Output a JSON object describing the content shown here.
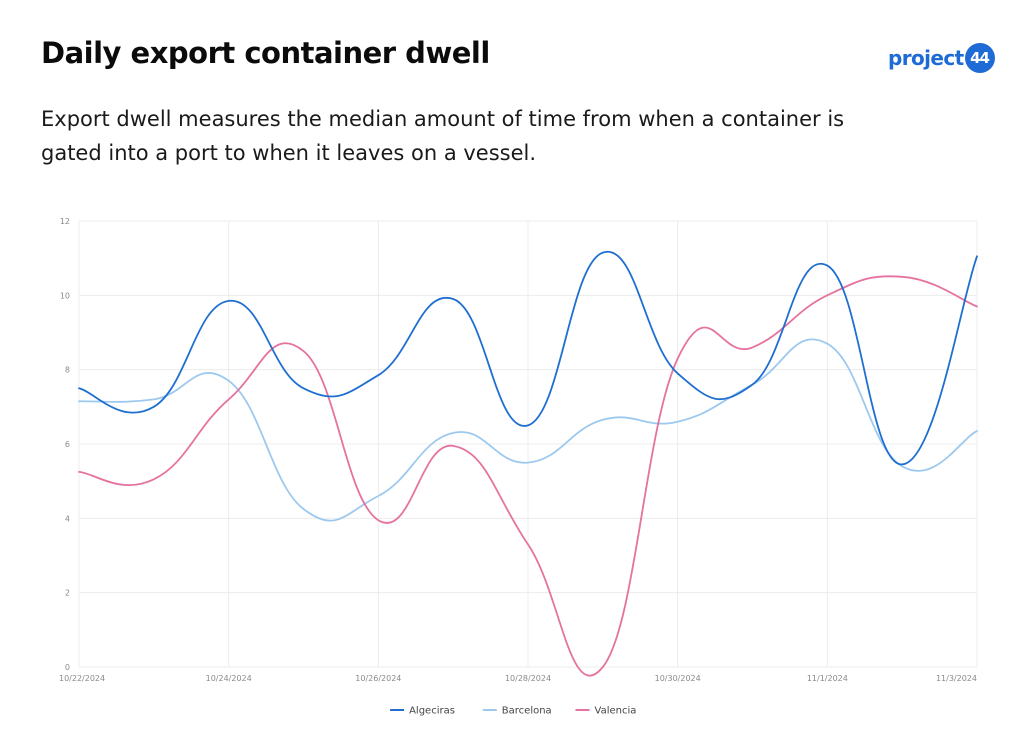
{
  "header": {
    "title": "Daily export container dwell",
    "subtitle": "Export dwell measures the median amount of time from when a container is gated into a port to when it leaves on a vessel.",
    "logo": {
      "text": "project",
      "badge": "44",
      "color": "#1f6bd6"
    }
  },
  "chart_data": {
    "type": "line",
    "title": "",
    "xlabel": "",
    "ylabel": "",
    "x": [
      "10/22/2024",
      "10/23/2024",
      "10/24/2024",
      "10/25/2024",
      "10/26/2024",
      "10/27/2024",
      "10/28/2024",
      "10/29/2024",
      "10/30/2024",
      "10/31/2024",
      "11/1/2024",
      "11/2/2024",
      "11/3/2024"
    ],
    "x_tick_labels": [
      "10/22/2024",
      "10/24/2024",
      "10/26/2024",
      "10/28/2024",
      "10/30/2024",
      "11/1/2024",
      "11/3/2024"
    ],
    "ylim": [
      0,
      12
    ],
    "y_ticks": [
      0,
      2,
      4,
      6,
      8,
      10,
      12
    ],
    "grid": true,
    "legend_position": "bottom-center",
    "series": [
      {
        "name": "Algeciras",
        "color": "#1f6fd1",
        "values": [
          7.5,
          7.0,
          9.85,
          7.5,
          7.85,
          9.9,
          6.5,
          11.15,
          7.9,
          7.6,
          10.8,
          5.45,
          11.05
        ]
      },
      {
        "name": "Barcelona",
        "color": "#9ec9ef",
        "values": [
          7.15,
          7.2,
          7.7,
          4.25,
          4.6,
          6.3,
          5.5,
          6.65,
          6.6,
          7.6,
          8.7,
          5.4,
          6.35
        ]
      },
      {
        "name": "Valencia",
        "color": "#e5729f",
        "values": [
          5.25,
          5.05,
          7.2,
          8.5,
          3.95,
          5.95,
          3.3,
          0.0,
          8.3,
          8.6,
          10.0,
          10.5,
          9.7
        ]
      }
    ]
  }
}
